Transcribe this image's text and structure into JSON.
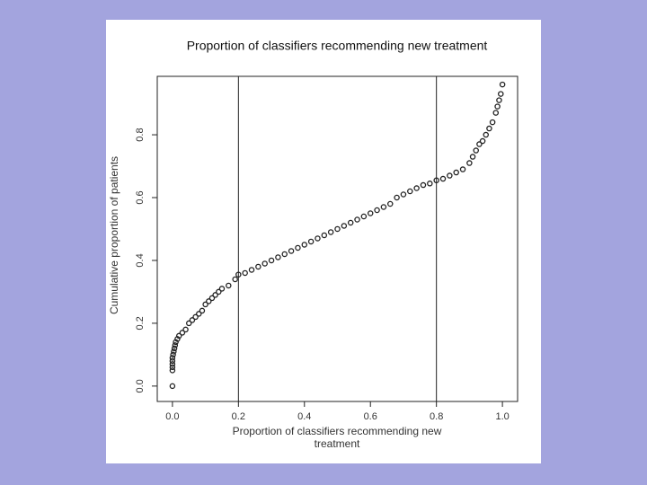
{
  "chart_data": {
    "type": "scatter",
    "title": "Proportion of classifiers recommending new treatment",
    "xlabel": "Proportion of classifiers recommending new treatment",
    "ylabel": "Cumulative proportion of patients",
    "xlim": [
      -0.046,
      1.046
    ],
    "ylim": [
      -0.049,
      0.986
    ],
    "xticks": [
      {
        "value": 0,
        "label": "0.0"
      },
      {
        "value": 0.2,
        "label": "0.2"
      },
      {
        "value": 0.4,
        "label": "0.4"
      },
      {
        "value": 0.6,
        "label": "0.6"
      },
      {
        "value": 0.8,
        "label": "0.8"
      },
      {
        "value": 1,
        "label": "1.0"
      }
    ],
    "yticks": [
      {
        "value": 0,
        "label": "0.0"
      },
      {
        "value": 0.2,
        "label": "0.2"
      },
      {
        "value": 0.4,
        "label": "0.4"
      },
      {
        "value": 0.6,
        "label": "0.6"
      },
      {
        "value": 0.8,
        "label": "0.8"
      }
    ],
    "vlines": [
      0.2,
      0.8
    ],
    "color": "#222222",
    "x": [
      0,
      0,
      0,
      0,
      0,
      0,
      0.002,
      0.004,
      0.006,
      0.008,
      0.01,
      0.015,
      0.02,
      0.03,
      0.04,
      0.05,
      0.06,
      0.07,
      0.08,
      0.09,
      0.1,
      0.11,
      0.12,
      0.13,
      0.14,
      0.15,
      0.17,
      0.19,
      0.2,
      0.22,
      0.24,
      0.26,
      0.28,
      0.3,
      0.32,
      0.34,
      0.36,
      0.38,
      0.4,
      0.42,
      0.44,
      0.46,
      0.48,
      0.5,
      0.52,
      0.54,
      0.56,
      0.58,
      0.6,
      0.62,
      0.64,
      0.66,
      0.68,
      0.7,
      0.72,
      0.74,
      0.76,
      0.78,
      0.8,
      0.82,
      0.84,
      0.86,
      0.88,
      0.9,
      0.91,
      0.92,
      0.93,
      0.94,
      0.95,
      0.96,
      0.97,
      0.98,
      0.985,
      0.99,
      0.995,
      1.0
    ],
    "values": [
      0,
      0.05,
      0.06,
      0.07,
      0.08,
      0.09,
      0.1,
      0.11,
      0.12,
      0.13,
      0.14,
      0.15,
      0.16,
      0.17,
      0.18,
      0.2,
      0.21,
      0.22,
      0.23,
      0.24,
      0.26,
      0.27,
      0.28,
      0.29,
      0.3,
      0.31,
      0.32,
      0.34,
      0.355,
      0.36,
      0.37,
      0.38,
      0.39,
      0.4,
      0.41,
      0.42,
      0.43,
      0.44,
      0.45,
      0.46,
      0.47,
      0.48,
      0.49,
      0.5,
      0.51,
      0.52,
      0.53,
      0.54,
      0.55,
      0.56,
      0.57,
      0.58,
      0.6,
      0.61,
      0.62,
      0.63,
      0.64,
      0.645,
      0.655,
      0.66,
      0.67,
      0.68,
      0.69,
      0.71,
      0.73,
      0.75,
      0.77,
      0.78,
      0.8,
      0.82,
      0.84,
      0.87,
      0.89,
      0.91,
      0.93,
      0.96
    ]
  }
}
